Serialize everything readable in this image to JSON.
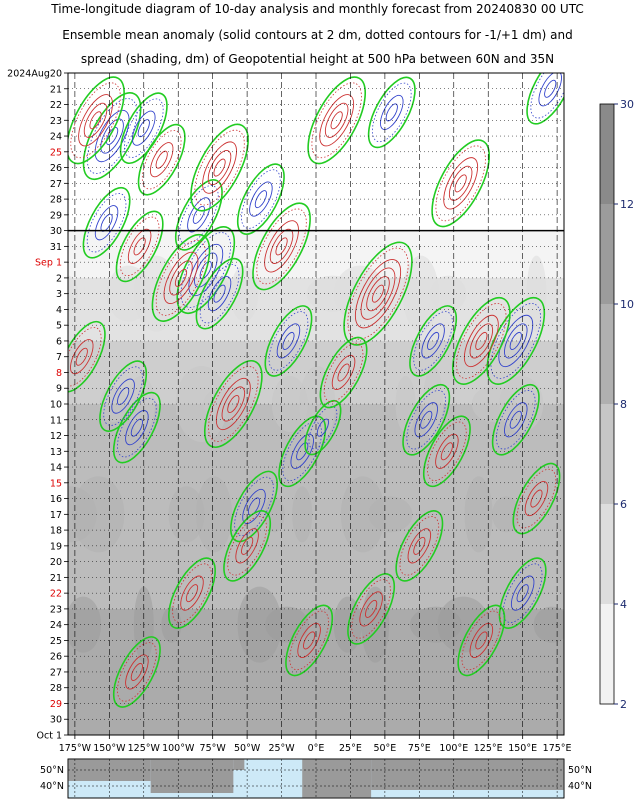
{
  "header": {
    "title_line1": "Time-longitude diagram of 10-day analysis and monthly forecast from 20240830 00 UTC",
    "title_line2": "Ensemble mean anomaly (solid contours at 2 dm, dotted contours for -1/+1 dm) and",
    "title_line3": "spread (shading, dm) of Geopotential height at 500 hPa between 60N and 35N"
  },
  "chart_data": {
    "type": "heatmap",
    "title": "Time-longitude diagram of 10-day analysis and monthly forecast from 20240830 00 UTC",
    "subtitle": "Ensemble mean anomaly (solid contours at 2 dm, dotted contours for -1/+1 dm) and spread (shading, dm) of Geopotential height at 500 hPa between 60N and 35N",
    "analysis_forecast_boundary": "30",
    "x_ticks": [
      "175°W",
      "150°W",
      "125°W",
      "100°W",
      "75°W",
      "50°W",
      "25°W",
      "0°E",
      "25°E",
      "50°E",
      "75°E",
      "100°E",
      "125°E",
      "150°E",
      "175°E"
    ],
    "x_values": [
      -175,
      -150,
      -125,
      -100,
      -75,
      -50,
      -25,
      0,
      25,
      50,
      75,
      100,
      125,
      150,
      175
    ],
    "xlim": [
      -180,
      180
    ],
    "y_ticks": [
      {
        "label": "2024Aug20",
        "red": false
      },
      {
        "label": "21",
        "red": false
      },
      {
        "label": "22",
        "red": false
      },
      {
        "label": "23",
        "red": false
      },
      {
        "label": "24",
        "red": false
      },
      {
        "label": "25",
        "red": true
      },
      {
        "label": "26",
        "red": false
      },
      {
        "label": "27",
        "red": false
      },
      {
        "label": "28",
        "red": false
      },
      {
        "label": "29",
        "red": false
      },
      {
        "label": "30",
        "red": false
      },
      {
        "label": "31",
        "red": false
      },
      {
        "label": "Sep  1",
        "red": true
      },
      {
        "label": "2",
        "red": false
      },
      {
        "label": "3",
        "red": false
      },
      {
        "label": "4",
        "red": false
      },
      {
        "label": "5",
        "red": false
      },
      {
        "label": "6",
        "red": false
      },
      {
        "label": "7",
        "red": false
      },
      {
        "label": "8",
        "red": true
      },
      {
        "label": "9",
        "red": false
      },
      {
        "label": "10",
        "red": false
      },
      {
        "label": "11",
        "red": false
      },
      {
        "label": "12",
        "red": false
      },
      {
        "label": "13",
        "red": false
      },
      {
        "label": "14",
        "red": false
      },
      {
        "label": "15",
        "red": true
      },
      {
        "label": "16",
        "red": false
      },
      {
        "label": "17",
        "red": false
      },
      {
        "label": "18",
        "red": false
      },
      {
        "label": "19",
        "red": false
      },
      {
        "label": "20",
        "red": false
      },
      {
        "label": "21",
        "red": false
      },
      {
        "label": "22",
        "red": true
      },
      {
        "label": "23",
        "red": false
      },
      {
        "label": "24",
        "red": false
      },
      {
        "label": "25",
        "red": false
      },
      {
        "label": "26",
        "red": false
      },
      {
        "label": "27",
        "red": false
      },
      {
        "label": "28",
        "red": false
      },
      {
        "label": "29",
        "red": true
      },
      {
        "label": "30",
        "red": false
      },
      {
        "label": "Oct  1",
        "red": false
      }
    ],
    "colorbar": {
      "ticks": [
        "2",
        "4",
        "6",
        "8",
        "10",
        "12",
        "30"
      ],
      "values": [
        2,
        4,
        6,
        8,
        10,
        12,
        30
      ],
      "colors": [
        "#f2f2f2",
        "#dddddd",
        "#c6c6c6",
        "#b0b0b0",
        "#9c9c9c",
        "#8a8a8a"
      ],
      "label_color": "#1c2a6e"
    },
    "contour_colors": {
      "positive": "#cc3333",
      "negative": "#3344cc",
      "zero": "#22cc22"
    },
    "map_strip": {
      "lat_labels": [
        "50°N",
        "40°N"
      ],
      "land_color": "#9a9a9a",
      "ocean_color": "#cde9f7"
    },
    "features": [
      {
        "sign": "neg",
        "lon": -148,
        "day": 4.0,
        "amp": 3
      },
      {
        "sign": "neg",
        "lon": -152,
        "day": 9.5,
        "amp": 2
      },
      {
        "sign": "neg",
        "lon": -130,
        "day": 22.5,
        "amp": 2
      },
      {
        "sign": "neg",
        "lon": -140,
        "day": 20.5,
        "amp": 2
      },
      {
        "sign": "neg",
        "lon": -125,
        "day": 3.5,
        "amp": 2
      },
      {
        "sign": "neg",
        "lon": -85,
        "day": 9.0,
        "amp": 2
      },
      {
        "sign": "neg",
        "lon": -80,
        "day": 12.5,
        "amp": 3
      },
      {
        "sign": "neg",
        "lon": -70,
        "day": 14.0,
        "amp": 2
      },
      {
        "sign": "neg",
        "lon": -40,
        "day": 8.0,
        "amp": 2
      },
      {
        "sign": "neg",
        "lon": -20,
        "day": 17.0,
        "amp": 2
      },
      {
        "sign": "neg",
        "lon": -45,
        "day": 27.5,
        "amp": 2
      },
      {
        "sign": "neg",
        "lon": -10,
        "day": 24.0,
        "amp": 2
      },
      {
        "sign": "neg",
        "lon": 5,
        "day": 22.5,
        "amp": 1
      },
      {
        "sign": "neg",
        "lon": 55,
        "day": 2.5,
        "amp": 2
      },
      {
        "sign": "neg",
        "lon": 85,
        "day": 17.0,
        "amp": 2
      },
      {
        "sign": "neg",
        "lon": 80,
        "day": 22.0,
        "amp": 2
      },
      {
        "sign": "neg",
        "lon": 145,
        "day": 17.0,
        "amp": 3
      },
      {
        "sign": "neg",
        "lon": 150,
        "day": 33.0,
        "amp": 2
      },
      {
        "sign": "neg",
        "lon": 170,
        "day": 1.0,
        "amp": 2
      },
      {
        "sign": "neg",
        "lon": 145,
        "day": 22.0,
        "amp": 2
      },
      {
        "sign": "pos",
        "lon": -160,
        "day": 3.0,
        "amp": 3
      },
      {
        "sign": "pos",
        "lon": -170,
        "day": 18.0,
        "amp": 2
      },
      {
        "sign": "pos",
        "lon": -128,
        "day": 11.0,
        "amp": 2
      },
      {
        "sign": "pos",
        "lon": -112,
        "day": 5.5,
        "amp": 2
      },
      {
        "sign": "pos",
        "lon": -98,
        "day": 13.0,
        "amp": 3
      },
      {
        "sign": "pos",
        "lon": -70,
        "day": 6.0,
        "amp": 3
      },
      {
        "sign": "pos",
        "lon": -25,
        "day": 11.0,
        "amp": 3
      },
      {
        "sign": "pos",
        "lon": -60,
        "day": 21.0,
        "amp": 3
      },
      {
        "sign": "pos",
        "lon": -50,
        "day": 30.0,
        "amp": 2
      },
      {
        "sign": "pos",
        "lon": 15,
        "day": 3.0,
        "amp": 3
      },
      {
        "sign": "pos",
        "lon": 45,
        "day": 14.0,
        "amp": 4
      },
      {
        "sign": "pos",
        "lon": 20,
        "day": 19.0,
        "amp": 2
      },
      {
        "sign": "pos",
        "lon": 105,
        "day": 7.0,
        "amp": 3
      },
      {
        "sign": "pos",
        "lon": 120,
        "day": 17.0,
        "amp": 3
      },
      {
        "sign": "pos",
        "lon": 95,
        "day": 24.0,
        "amp": 2
      },
      {
        "sign": "pos",
        "lon": 160,
        "day": 27.0,
        "amp": 2
      },
      {
        "sign": "pos",
        "lon": 75,
        "day": 30.0,
        "amp": 2
      },
      {
        "sign": "pos",
        "lon": -5,
        "day": 36.0,
        "amp": 2
      },
      {
        "sign": "pos",
        "lon": -130,
        "day": 38.0,
        "amp": 2
      },
      {
        "sign": "pos",
        "lon": -90,
        "day": 33.0,
        "amp": 2
      },
      {
        "sign": "pos",
        "lon": 40,
        "day": 34.0,
        "amp": 2
      },
      {
        "sign": "pos",
        "lon": 120,
        "day": 36.0,
        "amp": 2
      }
    ]
  }
}
